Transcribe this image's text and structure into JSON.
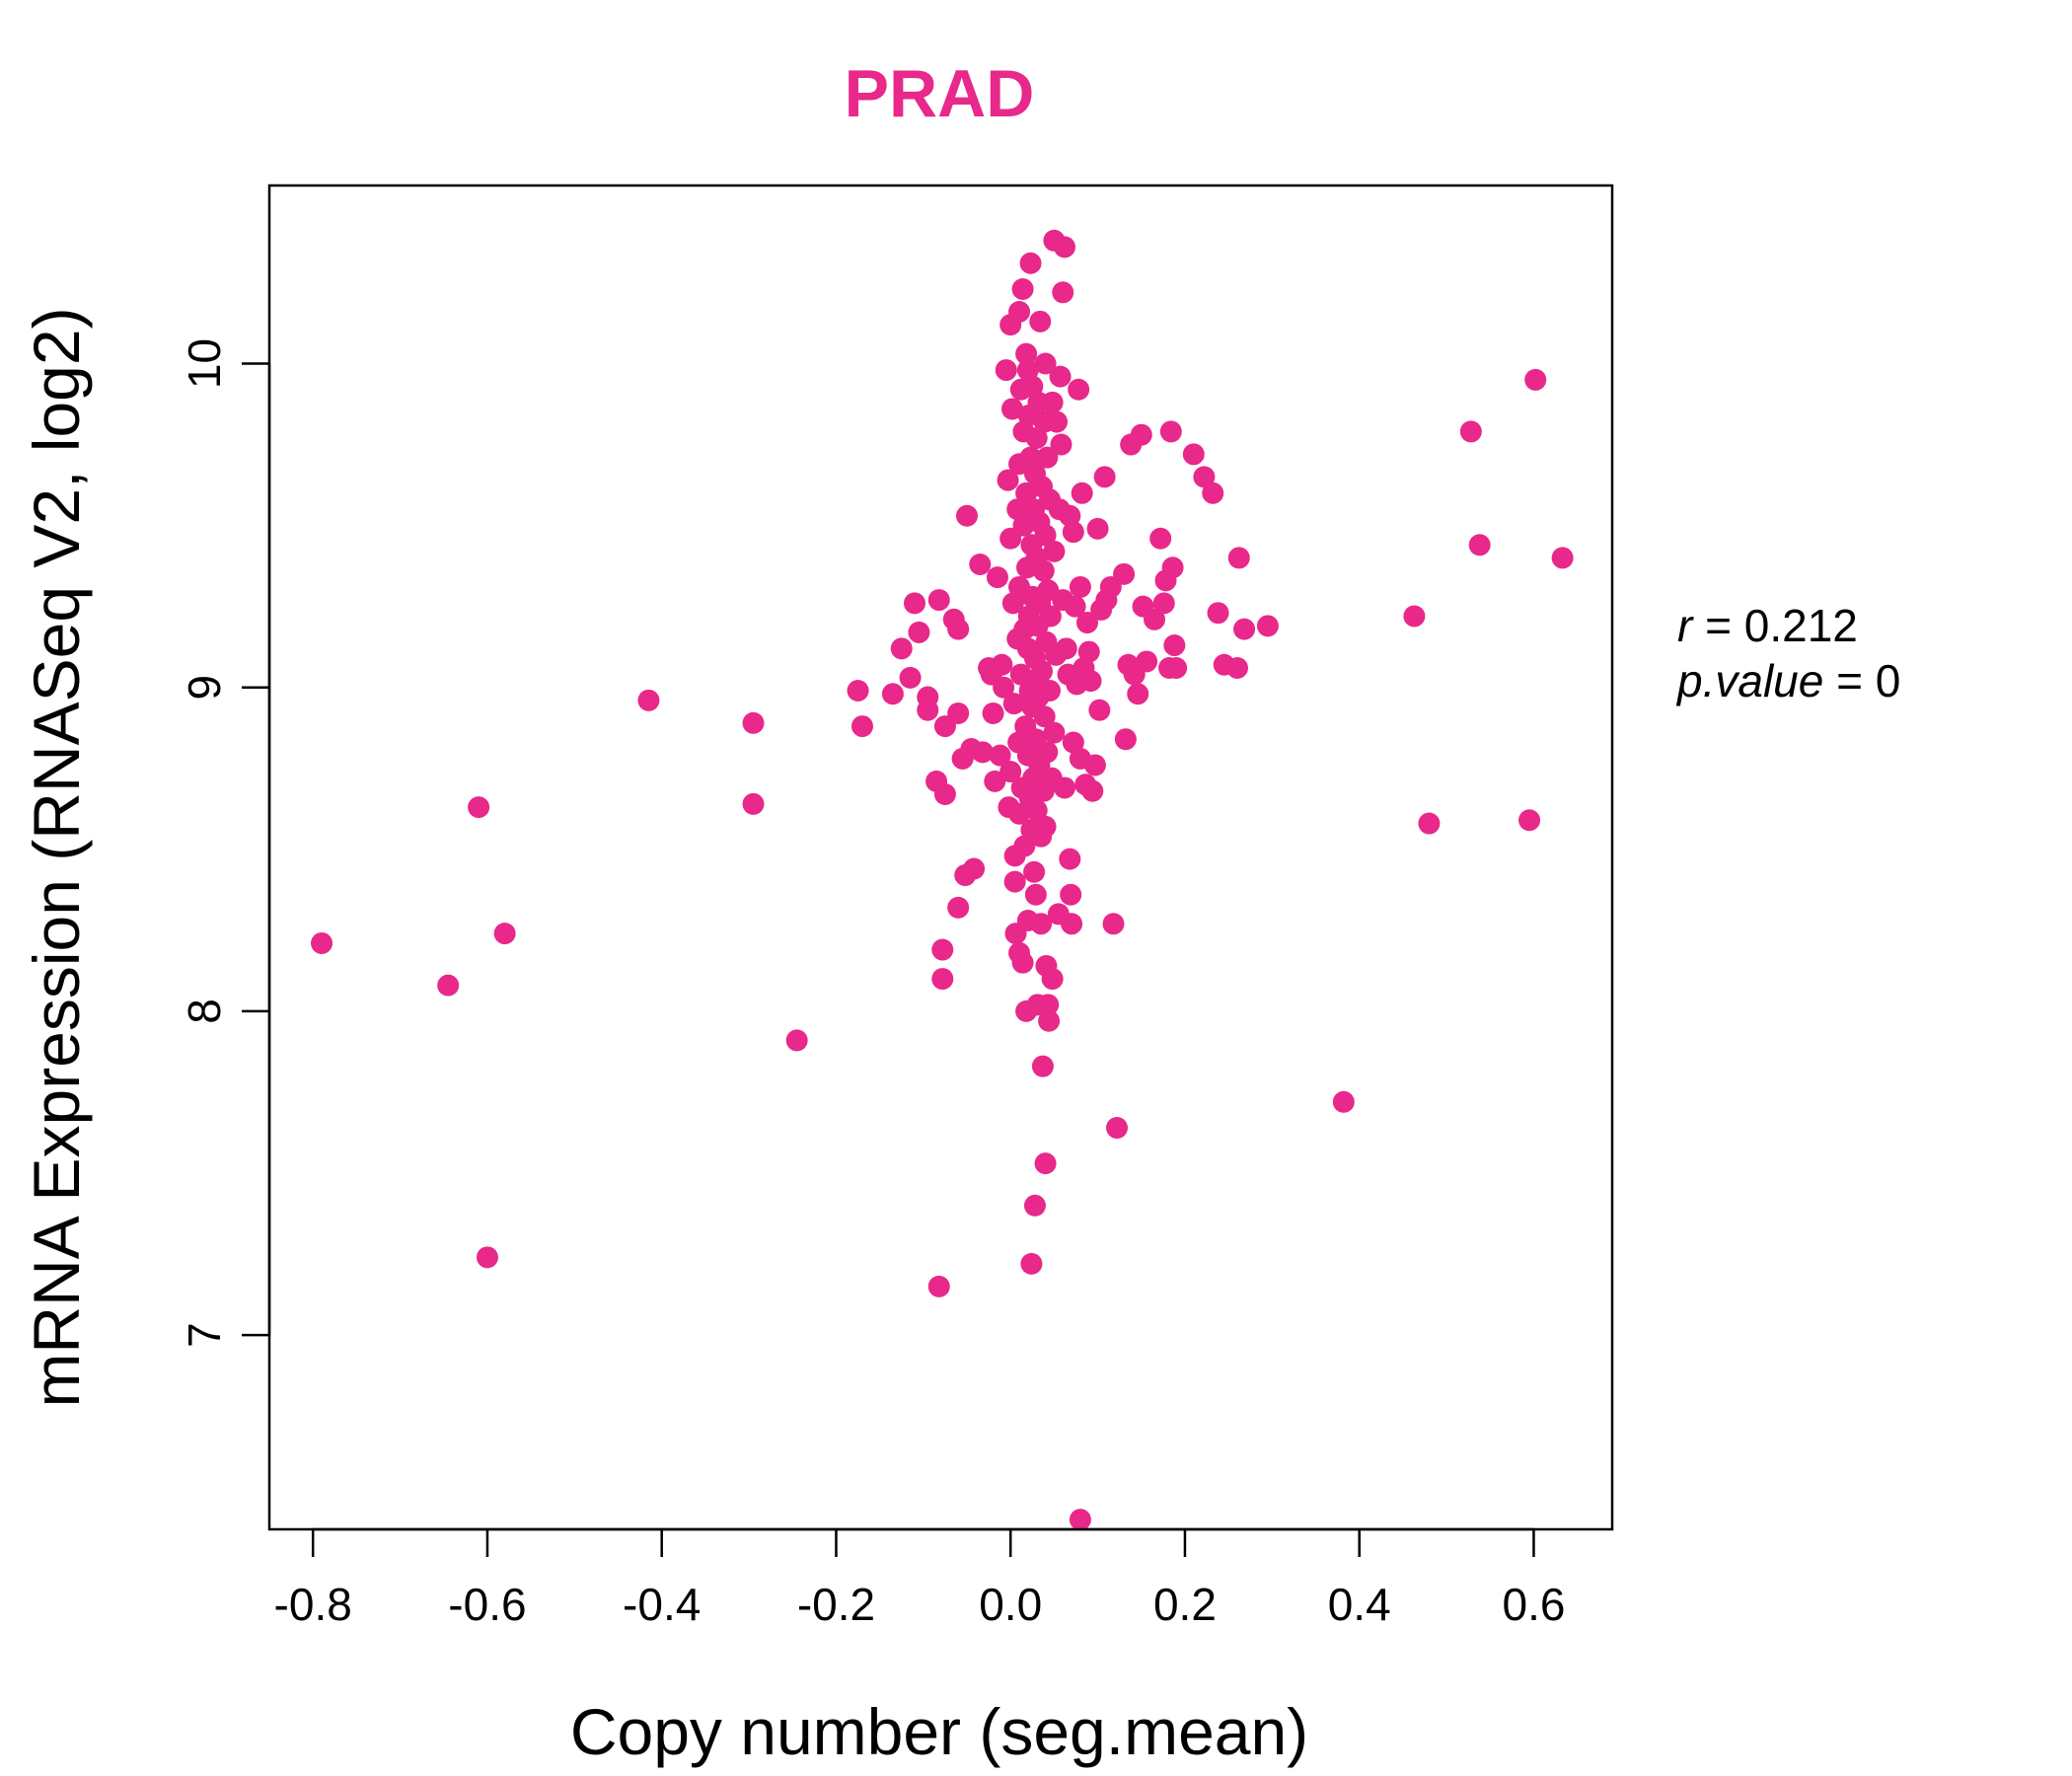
{
  "chart_data": {
    "type": "scatter",
    "title": "PRAD",
    "xlabel": "Copy number (seg.mean)",
    "ylabel": "mRNA Expression (RNASeq V2, log2)",
    "xlim": [
      -0.85,
      0.69
    ],
    "ylim": [
      6.4,
      10.55
    ],
    "xticks": [
      "-0.8",
      "-0.6",
      "-0.4",
      "-0.2",
      "0.0",
      "0.2",
      "0.4",
      "0.6"
    ],
    "yticks": [
      "7",
      "8",
      "9",
      "10"
    ],
    "point_color": "#e8288a",
    "annotation": {
      "r_label": "r",
      "r_value": "0.212",
      "p_label": "p.value",
      "p_value": "0"
    },
    "points": [
      [
        -0.79,
        8.21
      ],
      [
        -0.645,
        8.08
      ],
      [
        -0.61,
        8.63
      ],
      [
        -0.58,
        8.24
      ],
      [
        -0.6,
        7.24
      ],
      [
        -0.415,
        8.96
      ],
      [
        -0.295,
        8.89
      ],
      [
        -0.295,
        8.64
      ],
      [
        -0.245,
        7.91
      ],
      [
        -0.175,
        8.99
      ],
      [
        -0.17,
        8.88
      ],
      [
        -0.135,
        8.98
      ],
      [
        -0.125,
        9.12
      ],
      [
        -0.115,
        9.03
      ],
      [
        -0.11,
        9.26
      ],
      [
        -0.105,
        9.17
      ],
      [
        -0.095,
        8.97
      ],
      [
        -0.095,
        8.93
      ],
      [
        -0.085,
        8.71
      ],
      [
        -0.082,
        9.27
      ],
      [
        -0.075,
        8.88
      ],
      [
        -0.075,
        8.67
      ],
      [
        -0.078,
        8.19
      ],
      [
        -0.078,
        8.1
      ],
      [
        -0.082,
        7.15
      ],
      [
        -0.065,
        9.21
      ],
      [
        -0.06,
        9.18
      ],
      [
        -0.06,
        8.92
      ],
      [
        -0.06,
        8.32
      ],
      [
        -0.055,
        8.78
      ],
      [
        -0.052,
        8.42
      ],
      [
        -0.05,
        9.53
      ],
      [
        -0.045,
        8.81
      ],
      [
        -0.042,
        8.44
      ],
      [
        -0.035,
        9.38
      ],
      [
        -0.032,
        8.8
      ],
      [
        -0.025,
        9.06
      ],
      [
        -0.022,
        9.04
      ],
      [
        -0.02,
        8.92
      ],
      [
        -0.018,
        8.71
      ],
      [
        -0.015,
        9.34
      ],
      [
        -0.012,
        8.79
      ],
      [
        -0.01,
        9.07
      ],
      [
        -0.008,
        9.0
      ],
      [
        -0.005,
        9.98
      ],
      [
        -0.003,
        9.64
      ],
      [
        -0.002,
        8.63
      ],
      [
        0.0,
        10.12
      ],
      [
        0.0,
        9.46
      ],
      [
        0.0,
        8.74
      ],
      [
        0.002,
        9.86
      ],
      [
        0.003,
        9.26
      ],
      [
        0.004,
        8.95
      ],
      [
        0.005,
        8.48
      ],
      [
        0.005,
        8.4
      ],
      [
        0.006,
        8.24
      ],
      [
        0.008,
        9.55
      ],
      [
        0.008,
        9.15
      ],
      [
        0.009,
        8.83
      ],
      [
        0.01,
        10.16
      ],
      [
        0.01,
        9.69
      ],
      [
        0.01,
        9.31
      ],
      [
        0.01,
        8.61
      ],
      [
        0.01,
        8.18
      ],
      [
        0.012,
        9.92
      ],
      [
        0.012,
        9.04
      ],
      [
        0.013,
        8.69
      ],
      [
        0.014,
        10.23
      ],
      [
        0.014,
        8.15
      ],
      [
        0.015,
        9.79
      ],
      [
        0.015,
        9.5
      ],
      [
        0.016,
        9.18
      ],
      [
        0.016,
        8.51
      ],
      [
        0.017,
        8.88
      ],
      [
        0.018,
        10.03
      ],
      [
        0.018,
        9.6
      ],
      [
        0.018,
        8.0
      ],
      [
        0.019,
        9.37
      ],
      [
        0.02,
        9.98
      ],
      [
        0.02,
        9.12
      ],
      [
        0.02,
        8.79
      ],
      [
        0.02,
        8.28
      ],
      [
        0.021,
        9.84
      ],
      [
        0.021,
        9.22
      ],
      [
        0.022,
        8.99
      ],
      [
        0.022,
        8.66
      ],
      [
        0.023,
        10.31
      ],
      [
        0.023,
        9.71
      ],
      [
        0.024,
        9.44
      ],
      [
        0.024,
        8.56
      ],
      [
        0.024,
        7.22
      ],
      [
        0.025,
        9.93
      ],
      [
        0.025,
        9.28
      ],
      [
        0.025,
        8.94
      ],
      [
        0.026,
        9.01
      ],
      [
        0.026,
        8.72
      ],
      [
        0.027,
        9.55
      ],
      [
        0.027,
        8.43
      ],
      [
        0.028,
        9.66
      ],
      [
        0.028,
        9.09
      ],
      [
        0.028,
        7.4
      ],
      [
        0.029,
        8.84
      ],
      [
        0.029,
        8.36
      ],
      [
        0.03,
        9.77
      ],
      [
        0.03,
        9.4
      ],
      [
        0.03,
        8.62
      ],
      [
        0.031,
        9.19
      ],
      [
        0.031,
        8.02
      ],
      [
        0.032,
        9.88
      ],
      [
        0.032,
        8.97
      ],
      [
        0.033,
        9.51
      ],
      [
        0.033,
        8.76
      ],
      [
        0.034,
        10.13
      ],
      [
        0.034,
        9.26
      ],
      [
        0.035,
        8.54
      ],
      [
        0.035,
        8.27
      ],
      [
        0.036,
        9.62
      ],
      [
        0.036,
        9.05
      ],
      [
        0.037,
        7.83
      ],
      [
        0.038,
        9.36
      ],
      [
        0.038,
        8.68
      ],
      [
        0.039,
        9.82
      ],
      [
        0.039,
        8.91
      ],
      [
        0.04,
        10.0
      ],
      [
        0.04,
        9.47
      ],
      [
        0.04,
        8.57
      ],
      [
        0.04,
        7.53
      ],
      [
        0.041,
        9.14
      ],
      [
        0.041,
        8.14
      ],
      [
        0.042,
        9.71
      ],
      [
        0.042,
        8.8
      ],
      [
        0.043,
        9.3
      ],
      [
        0.043,
        8.02
      ],
      [
        0.044,
        7.97
      ],
      [
        0.045,
        9.58
      ],
      [
        0.045,
        8.99
      ],
      [
        0.046,
        9.22
      ],
      [
        0.047,
        8.72
      ],
      [
        0.048,
        9.88
      ],
      [
        0.048,
        8.1
      ],
      [
        0.05,
        10.38
      ],
      [
        0.05,
        9.42
      ],
      [
        0.05,
        8.86
      ],
      [
        0.052,
        9.1
      ],
      [
        0.053,
        9.82
      ],
      [
        0.055,
        8.3
      ],
      [
        0.056,
        9.55
      ],
      [
        0.057,
        9.96
      ],
      [
        0.058,
        9.75
      ],
      [
        0.06,
        10.22
      ],
      [
        0.06,
        9.27
      ],
      [
        0.062,
        10.36
      ],
      [
        0.062,
        8.69
      ],
      [
        0.064,
        9.12
      ],
      [
        0.066,
        9.04
      ],
      [
        0.068,
        9.53
      ],
      [
        0.068,
        8.47
      ],
      [
        0.069,
        8.36
      ],
      [
        0.07,
        8.27
      ],
      [
        0.072,
        9.48
      ],
      [
        0.072,
        8.83
      ],
      [
        0.074,
        9.25
      ],
      [
        0.076,
        9.01
      ],
      [
        0.078,
        9.92
      ],
      [
        0.08,
        9.31
      ],
      [
        0.08,
        8.78
      ],
      [
        0.08,
        6.43
      ],
      [
        0.082,
        9.6
      ],
      [
        0.084,
        9.06
      ],
      [
        0.086,
        8.7
      ],
      [
        0.088,
        9.2
      ],
      [
        0.09,
        9.11
      ],
      [
        0.092,
        9.02
      ],
      [
        0.094,
        8.68
      ],
      [
        0.097,
        8.76
      ],
      [
        0.1,
        9.49
      ],
      [
        0.102,
        8.93
      ],
      [
        0.104,
        9.24
      ],
      [
        0.108,
        9.65
      ],
      [
        0.11,
        9.27
      ],
      [
        0.115,
        9.31
      ],
      [
        0.118,
        8.27
      ],
      [
        0.122,
        7.64
      ],
      [
        0.13,
        9.35
      ],
      [
        0.132,
        8.84
      ],
      [
        0.135,
        9.07
      ],
      [
        0.138,
        9.75
      ],
      [
        0.142,
        9.04
      ],
      [
        0.146,
        8.98
      ],
      [
        0.15,
        9.78
      ],
      [
        0.152,
        9.25
      ],
      [
        0.156,
        9.08
      ],
      [
        0.165,
        9.21
      ],
      [
        0.172,
        9.46
      ],
      [
        0.176,
        9.26
      ],
      [
        0.178,
        9.33
      ],
      [
        0.182,
        9.06
      ],
      [
        0.184,
        9.79
      ],
      [
        0.186,
        9.37
      ],
      [
        0.188,
        9.13
      ],
      [
        0.19,
        9.06
      ],
      [
        0.21,
        9.72
      ],
      [
        0.222,
        9.65
      ],
      [
        0.232,
        9.6
      ],
      [
        0.238,
        9.23
      ],
      [
        0.245,
        9.07
      ],
      [
        0.26,
        9.06
      ],
      [
        0.262,
        9.4
      ],
      [
        0.268,
        9.18
      ],
      [
        0.295,
        9.19
      ],
      [
        0.382,
        7.72
      ],
      [
        0.463,
        9.22
      ],
      [
        0.48,
        8.58
      ],
      [
        0.528,
        9.79
      ],
      [
        0.538,
        9.44
      ],
      [
        0.595,
        8.59
      ],
      [
        0.602,
        9.95
      ],
      [
        0.633,
        9.4
      ]
    ]
  }
}
